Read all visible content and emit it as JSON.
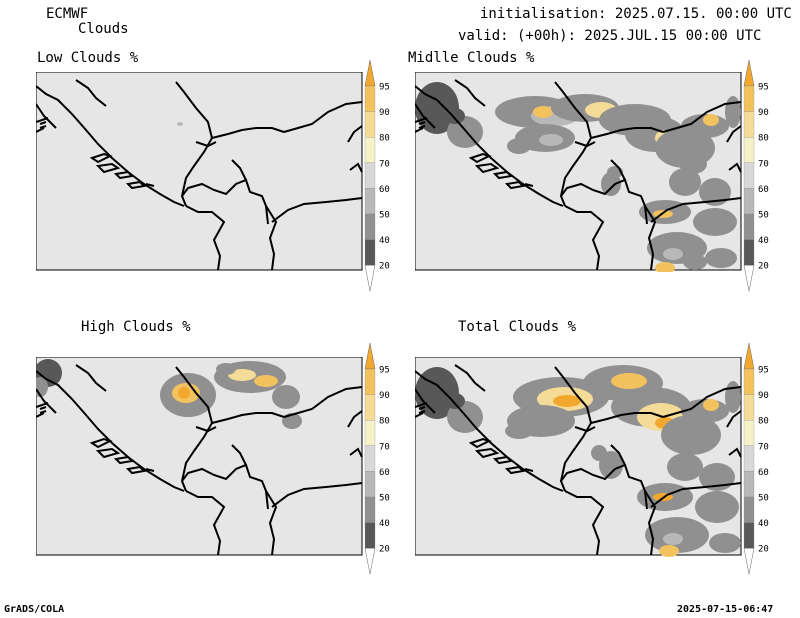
{
  "header": {
    "model": "ECMWF",
    "product": "Clouds",
    "init": "initialisation: 2025.07.15. 00:00 UTC",
    "valid": "valid: (+00h): 2025.JUL.15 00:00 UTC"
  },
  "panels": [
    {
      "title": "Low Clouds %"
    },
    {
      "title": "Midlle Clouds %"
    },
    {
      "title": "High Clouds %"
    },
    {
      "title": "Total Clouds %"
    }
  ],
  "colorbar": {
    "labels": [
      "95",
      "90",
      "80",
      "70",
      "60",
      "50",
      "40",
      "20"
    ],
    "colors": [
      "#f2a82e",
      "#f2c25e",
      "#f5db98",
      "#f5f2c8",
      "#d8d8d8",
      "#b8b8b8",
      "#909090",
      "#585858",
      "#ffffff"
    ]
  },
  "colors": {
    "land_bg": "#e6e6e6",
    "border": "#000000"
  },
  "footer": {
    "left": "GrADS/COLA",
    "right": "2025-07-15-06:47"
  }
}
